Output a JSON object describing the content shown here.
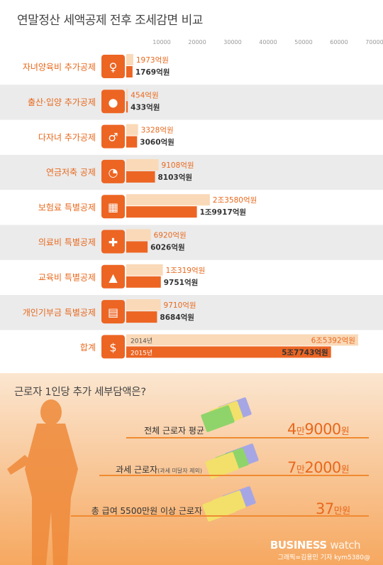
{
  "title": "연말정산 세액공제 전후 조세감면 비교",
  "chart_data": {
    "type": "bar",
    "title": "연말정산 세액공제 전후 조세감면 비교",
    "x_ticks": [
      "10000",
      "20000",
      "30000",
      "40000",
      "50000",
      "60000",
      "70000"
    ],
    "xlim": [
      0,
      70000
    ],
    "unit": "억원",
    "categories": [
      "자녀양육비 추가공제",
      "출산·입양 추가공제",
      "다자녀 추가공제",
      "연금저축 공제",
      "보험료 특별공제",
      "의료비 특별공제",
      "교육비 특별공제",
      "개인기부금 특별공제",
      "합계"
    ],
    "series": [
      {
        "name": "2014년",
        "color": "#fad9b8",
        "values": [
          1973,
          454,
          3328,
          9108,
          23580,
          6920,
          10319,
          9710,
          65392
        ],
        "labels": [
          "1973억원",
          "454억원",
          "3328억원",
          "9108억원",
          "2조3580억원",
          "6920억원",
          "1조319억원",
          "9710억원",
          "6조5392억원"
        ]
      },
      {
        "name": "2015년",
        "color": "#ec6523",
        "values": [
          1769,
          433,
          3060,
          8103,
          19917,
          6026,
          9751,
          8684,
          57743
        ],
        "labels": [
          "1769억원",
          "433억원",
          "3060억원",
          "8103억원",
          "1조9917억원",
          "6026억원",
          "9751억원",
          "8684억원",
          "5조7743억원"
        ]
      }
    ],
    "icons": [
      "children-icon",
      "baby-icon",
      "family-icon",
      "piggy-bank-icon",
      "calendar-icon",
      "medical-cross-icon",
      "graduation-cap-icon",
      "donation-icon",
      "money-bag-icon"
    ],
    "colors": {
      "label": "#e8681c",
      "band": "#ebebeb",
      "icon_box": "#ec6523"
    }
  },
  "section2": {
    "title": "근로자 1인당 추가 세부담액은?",
    "items": [
      {
        "label": "전체 근로자 평균",
        "sub": "",
        "value_big1": "4",
        "value_small": "만",
        "value_big2": "9000",
        "unit": "원"
      },
      {
        "label": "과세 근로자",
        "sub": "(과세 미달자 제외)",
        "value_big1": "7",
        "value_small": "만",
        "value_big2": "2000",
        "unit": "원"
      },
      {
        "label": "총 급여 5500만원 이상 근로자",
        "sub": "",
        "value_big1": "37",
        "value_small": "만원",
        "value_big2": "",
        "unit": ""
      }
    ],
    "bg_color": "#fbe3c8"
  },
  "footer": {
    "brand_bold": "BUSINESS",
    "brand_light": "watch",
    "credit": "그래픽=김용민 기자 kym5380@"
  }
}
